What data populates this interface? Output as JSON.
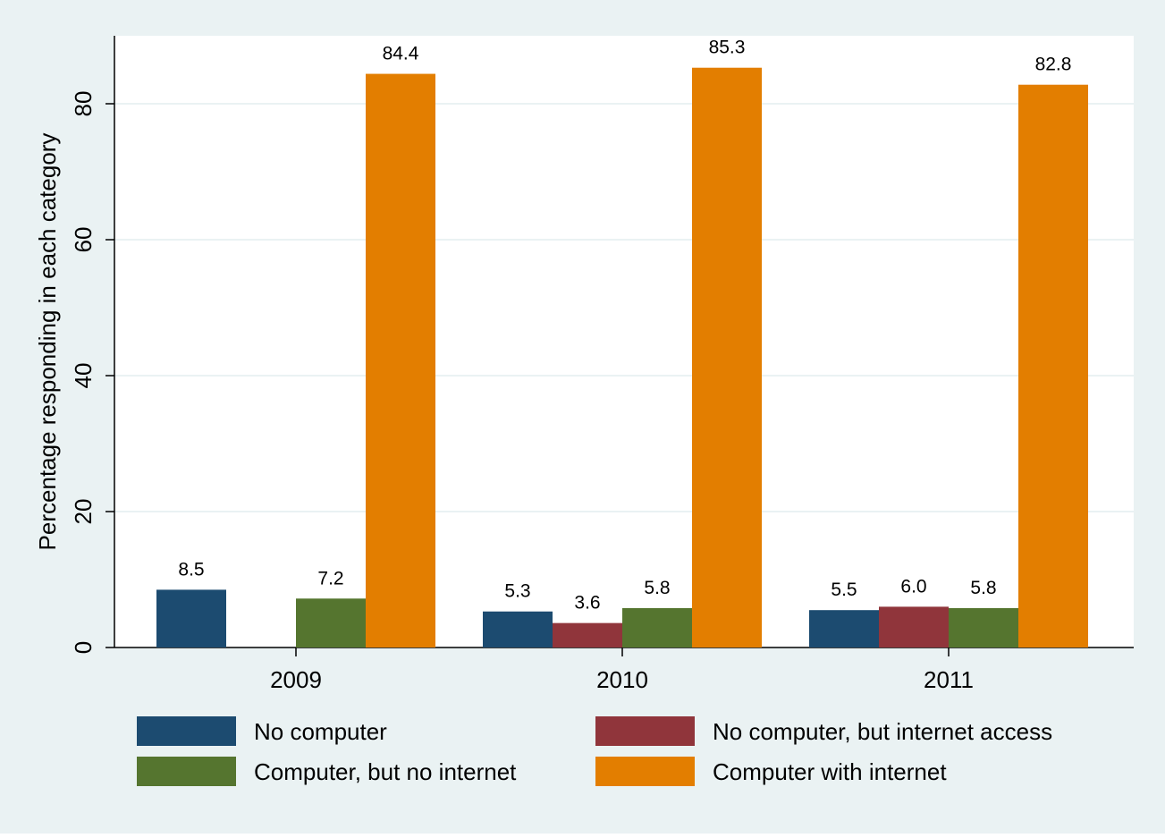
{
  "chart_data": {
    "type": "bar",
    "categories": [
      "2009",
      "2010",
      "2011"
    ],
    "series": [
      {
        "name": "No computer",
        "values": [
          8.5,
          5.3,
          5.5
        ],
        "color": "#1c4b70"
      },
      {
        "name": "No computer, but internet access",
        "values": [
          null,
          3.6,
          6.0
        ],
        "color": "#90353b"
      },
      {
        "name": "Computer, but no internet",
        "values": [
          7.2,
          5.8,
          5.8
        ],
        "color": "#55752f"
      },
      {
        "name": "Computer with internet",
        "values": [
          84.4,
          85.3,
          82.8
        ],
        "color": "#e37e00"
      }
    ],
    "ylabel": "Percentage responding in each category",
    "xlabel": "",
    "ylim": [
      0,
      90
    ],
    "yticks": [
      0,
      20,
      40,
      60,
      80
    ],
    "grid": true,
    "legend_position": "bottom",
    "background": "#eaf2f3",
    "plot_background": "#ffffff",
    "grid_color": "#eaf2f3"
  }
}
